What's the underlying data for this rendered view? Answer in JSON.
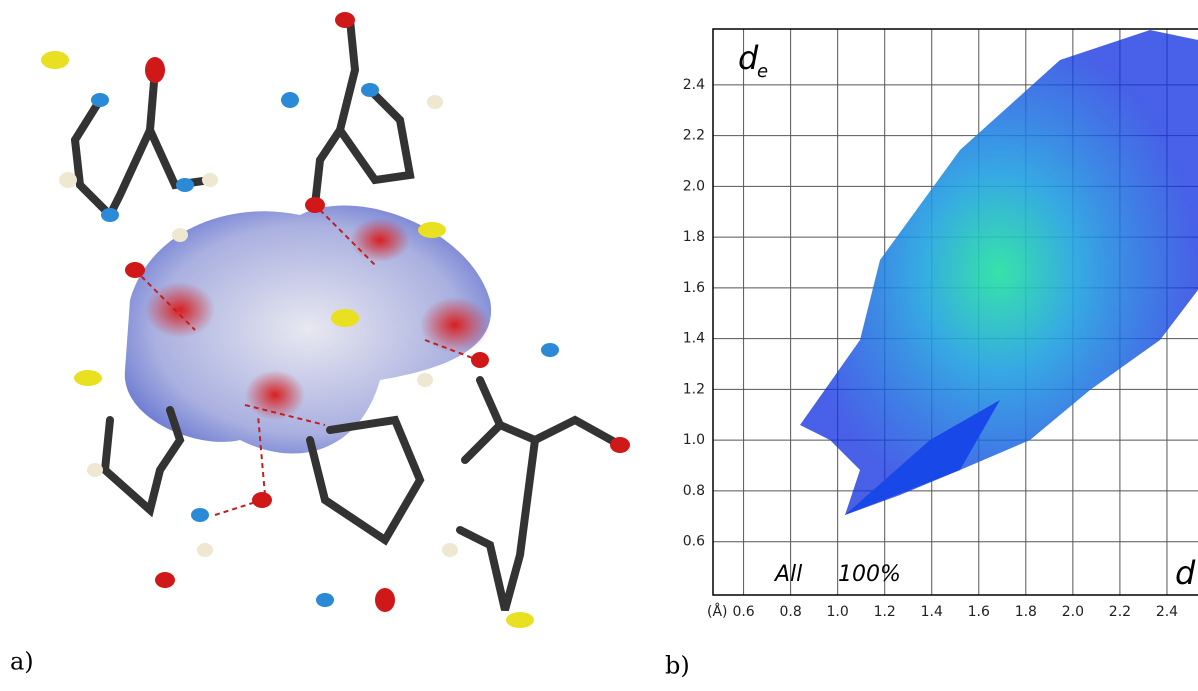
{
  "panel_labels": [
    "a)",
    "b)"
  ],
  "chart_data": {
    "type": "fingerprint",
    "y_label": "d",
    "y_label_sub": "e",
    "x_label": "d",
    "corner_label": "All",
    "percent_label": "100%",
    "unit_label": "(Å)",
    "xlim": [
      0.47,
      2.6
    ],
    "ylim": [
      0.39,
      2.62
    ],
    "xticks": [
      0.6,
      0.8,
      {
        "value": 1,
        "label": "1.0"
      },
      1.2,
      1.4,
      1.6,
      1.8,
      {
        "value": 2,
        "label": "2.0"
      },
      2.2,
      2.4
    ],
    "yticks": [
      0.6,
      0.8,
      {
        "value": 1,
        "label": "1.0"
      },
      1.2,
      1.4,
      1.6,
      1.8,
      {
        "value": 2,
        "label": "2.0"
      },
      2.2,
      2.4
    ],
    "grid": true
  }
}
